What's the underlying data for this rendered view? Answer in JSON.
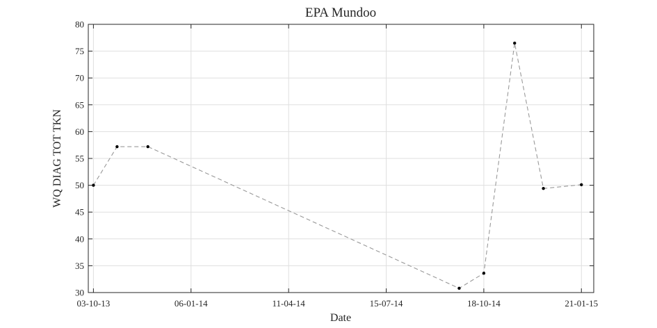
{
  "chart_data": {
    "type": "line",
    "title": "EPA Mundoo",
    "xlabel": "Date",
    "ylabel": "WQ DIAG TOT TKN",
    "ylim": [
      30,
      80
    ],
    "yticks": [
      "30",
      "35",
      "40",
      "45",
      "50",
      "55",
      "60",
      "65",
      "70",
      "75",
      "80"
    ],
    "xlim": [
      "2013-09-28",
      "2015-02-02"
    ],
    "xticks": [
      {
        "date": "2013-10-03",
        "label": "03-10-13"
      },
      {
        "date": "2014-01-06",
        "label": "06-01-14"
      },
      {
        "date": "2014-04-11",
        "label": "11-04-14"
      },
      {
        "date": "2014-07-15",
        "label": "15-07-14"
      },
      {
        "date": "2014-10-18",
        "label": "18-10-14"
      },
      {
        "date": "2015-01-21",
        "label": "21-01-15"
      }
    ],
    "grid": true,
    "series": [
      {
        "line_color": "#999999",
        "marker_color": "#000000",
        "line_style": "dashed",
        "x": [
          "2013-10-03",
          "2013-10-26",
          "2013-11-25",
          "2014-09-24",
          "2014-10-18",
          "2014-11-17",
          "2014-12-15",
          "2015-01-21"
        ],
        "y": [
          50.0,
          57.2,
          57.2,
          30.8,
          33.6,
          76.5,
          49.4,
          50.1
        ]
      }
    ]
  }
}
